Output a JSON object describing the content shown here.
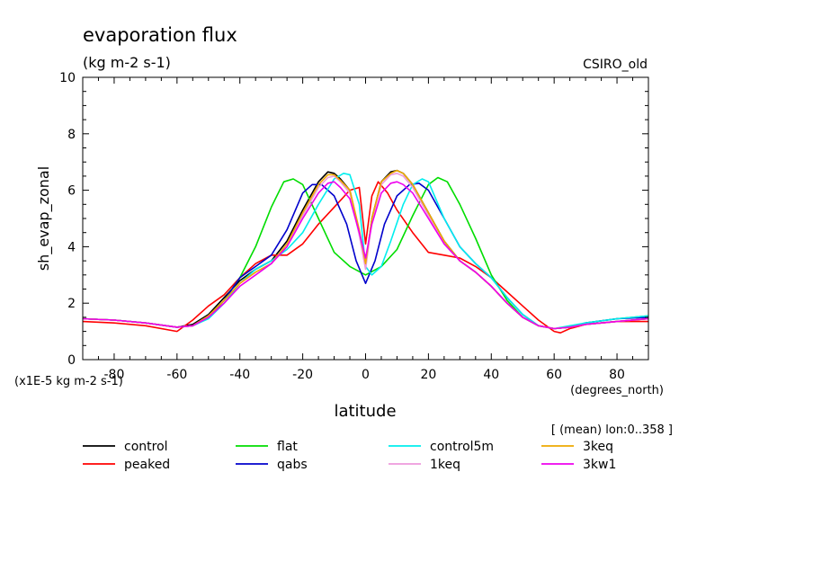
{
  "chart_data": {
    "type": "line",
    "title": "evaporation flux",
    "subtitle": "(kg m-2 s-1)",
    "source_label": "CSIRO_old",
    "ylabel": "sh_evap_zonal",
    "xlabel": "latitude",
    "x_units": "(degrees_north)",
    "y_scale_note": "(x1E-5 kg m-2 s-1)",
    "averaging_note": "[ (mean) lon:0..358 ]",
    "xlim": [
      -90,
      90
    ],
    "ylim": [
      0,
      10
    ],
    "x_ticks": [
      -80,
      -60,
      -40,
      -20,
      0,
      20,
      40,
      60,
      80
    ],
    "y_ticks": [
      0,
      2,
      4,
      6,
      8,
      10
    ],
    "legend_position": "bottom",
    "series": [
      {
        "name": "control",
        "color": "#000000",
        "x": [
          -90,
          -80,
          -70,
          -60,
          -55,
          -50,
          -45,
          -40,
          -35,
          -30,
          -25,
          -20,
          -15,
          -12,
          -10,
          -8,
          -5,
          -2,
          0,
          2,
          5,
          8,
          10,
          12,
          15,
          20,
          25,
          30,
          35,
          40,
          45,
          50,
          55,
          60,
          65,
          70,
          80,
          90
        ],
        "y": [
          1.45,
          1.4,
          1.3,
          1.15,
          1.25,
          1.6,
          2.2,
          2.8,
          3.2,
          3.5,
          4.2,
          5.3,
          6.3,
          6.65,
          6.6,
          6.4,
          6.0,
          4.5,
          3.3,
          5.0,
          6.3,
          6.65,
          6.7,
          6.6,
          6.2,
          5.2,
          4.2,
          3.5,
          3.1,
          2.6,
          2.0,
          1.5,
          1.2,
          1.1,
          1.15,
          1.25,
          1.35,
          1.45
        ]
      },
      {
        "name": "peaked",
        "color": "#ff0000",
        "x": [
          -90,
          -80,
          -70,
          -60,
          -55,
          -50,
          -45,
          -40,
          -35,
          -30,
          -25,
          -20,
          -15,
          -10,
          -5,
          -2,
          0,
          2,
          4,
          7,
          10,
          15,
          20,
          25,
          30,
          35,
          40,
          45,
          50,
          55,
          60,
          62,
          65,
          70,
          80,
          90
        ],
        "y": [
          1.35,
          1.3,
          1.2,
          1.0,
          1.4,
          1.9,
          2.3,
          2.9,
          3.4,
          3.7,
          3.7,
          4.1,
          4.8,
          5.4,
          6.0,
          6.1,
          4.1,
          5.8,
          6.3,
          5.9,
          5.3,
          4.5,
          3.8,
          3.7,
          3.6,
          3.3,
          2.9,
          2.4,
          1.9,
          1.4,
          1.0,
          0.95,
          1.1,
          1.25,
          1.35,
          1.35
        ]
      },
      {
        "name": "flat",
        "color": "#00dd00",
        "x": [
          -90,
          -80,
          -70,
          -60,
          -55,
          -50,
          -45,
          -40,
          -35,
          -30,
          -26,
          -23,
          -20,
          -15,
          -10,
          -5,
          0,
          5,
          10,
          15,
          20,
          23,
          26,
          30,
          35,
          40,
          45,
          50,
          55,
          60,
          65,
          70,
          80,
          90
        ],
        "y": [
          1.45,
          1.4,
          1.3,
          1.15,
          1.2,
          1.5,
          2.1,
          2.9,
          4.0,
          5.4,
          6.3,
          6.4,
          6.2,
          5.0,
          3.8,
          3.3,
          3.0,
          3.3,
          3.9,
          5.1,
          6.2,
          6.45,
          6.3,
          5.5,
          4.3,
          3.0,
          2.1,
          1.5,
          1.2,
          1.1,
          1.15,
          1.3,
          1.45,
          1.55
        ]
      },
      {
        "name": "qabs",
        "color": "#0000cc",
        "x": [
          -90,
          -80,
          -70,
          -60,
          -55,
          -50,
          -45,
          -40,
          -35,
          -30,
          -25,
          -20,
          -17,
          -14,
          -10,
          -6,
          -3,
          0,
          3,
          6,
          10,
          14,
          17,
          20,
          25,
          30,
          35,
          40,
          45,
          50,
          55,
          60,
          65,
          70,
          80,
          90
        ],
        "y": [
          1.45,
          1.4,
          1.3,
          1.15,
          1.2,
          1.5,
          2.1,
          2.9,
          3.3,
          3.7,
          4.6,
          5.9,
          6.2,
          6.2,
          5.8,
          4.8,
          3.5,
          2.7,
          3.5,
          4.8,
          5.8,
          6.2,
          6.25,
          6.0,
          5.0,
          4.0,
          3.4,
          2.9,
          2.2,
          1.6,
          1.2,
          1.1,
          1.15,
          1.3,
          1.45,
          1.5
        ]
      },
      {
        "name": "control5m",
        "color": "#00eeee",
        "x": [
          -90,
          -80,
          -70,
          -60,
          -55,
          -50,
          -45,
          -40,
          -35,
          -30,
          -25,
          -20,
          -15,
          -10,
          -7,
          -5,
          -2,
          0,
          2,
          5,
          8,
          12,
          15,
          18,
          20,
          25,
          30,
          35,
          40,
          45,
          50,
          55,
          60,
          65,
          70,
          80,
          90
        ],
        "y": [
          1.45,
          1.4,
          1.3,
          1.15,
          1.2,
          1.45,
          2.0,
          2.7,
          3.2,
          3.5,
          3.9,
          4.5,
          5.5,
          6.4,
          6.6,
          6.55,
          5.5,
          3.3,
          3.0,
          3.3,
          4.2,
          5.5,
          6.2,
          6.4,
          6.3,
          5.0,
          4.0,
          3.4,
          2.9,
          2.2,
          1.6,
          1.2,
          1.1,
          1.2,
          1.3,
          1.45,
          1.55
        ]
      },
      {
        "name": "1keq",
        "color": "#ee99dd",
        "x": [
          -90,
          -80,
          -70,
          -60,
          -55,
          -50,
          -45,
          -40,
          -35,
          -30,
          -25,
          -20,
          -15,
          -12,
          -10,
          -8,
          -5,
          -2,
          0,
          2,
          5,
          8,
          10,
          12,
          15,
          20,
          25,
          30,
          35,
          40,
          45,
          50,
          55,
          60,
          65,
          70,
          80,
          90
        ],
        "y": [
          1.45,
          1.4,
          1.3,
          1.15,
          1.2,
          1.55,
          2.1,
          2.7,
          3.1,
          3.4,
          4.1,
          5.1,
          6.1,
          6.45,
          6.5,
          6.3,
          5.9,
          4.4,
          3.2,
          4.9,
          6.2,
          6.55,
          6.6,
          6.5,
          6.1,
          5.1,
          4.1,
          3.5,
          3.1,
          2.6,
          2.0,
          1.5,
          1.2,
          1.1,
          1.15,
          1.25,
          1.35,
          1.45
        ]
      },
      {
        "name": "3keq",
        "color": "#eeaa00",
        "x": [
          -90,
          -80,
          -70,
          -60,
          -55,
          -50,
          -45,
          -40,
          -35,
          -30,
          -25,
          -20,
          -15,
          -12,
          -10,
          -8,
          -5,
          -2,
          0,
          2,
          5,
          8,
          10,
          12,
          15,
          20,
          25,
          30,
          35,
          40,
          45,
          50,
          55,
          60,
          65,
          70,
          80,
          90
        ],
        "y": [
          1.45,
          1.4,
          1.3,
          1.15,
          1.2,
          1.55,
          2.1,
          2.7,
          3.1,
          3.4,
          4.1,
          5.2,
          6.2,
          6.55,
          6.55,
          6.35,
          6.0,
          4.6,
          3.4,
          5.0,
          6.3,
          6.6,
          6.7,
          6.6,
          6.2,
          5.2,
          4.2,
          3.5,
          3.1,
          2.6,
          2.0,
          1.5,
          1.2,
          1.1,
          1.15,
          1.25,
          1.35,
          1.45
        ]
      },
      {
        "name": "3kw1",
        "color": "#ee00ee",
        "x": [
          -90,
          -80,
          -70,
          -60,
          -55,
          -50,
          -45,
          -40,
          -35,
          -30,
          -25,
          -20,
          -15,
          -12,
          -10,
          -8,
          -5,
          -2,
          0,
          2,
          5,
          8,
          10,
          12,
          15,
          20,
          25,
          30,
          35,
          40,
          45,
          50,
          55,
          60,
          65,
          70,
          80,
          90
        ],
        "y": [
          1.45,
          1.4,
          1.3,
          1.15,
          1.2,
          1.5,
          2.0,
          2.6,
          3.0,
          3.4,
          4.0,
          5.0,
          5.9,
          6.25,
          6.3,
          6.1,
          5.7,
          4.5,
          3.6,
          4.8,
          5.9,
          6.25,
          6.3,
          6.2,
          5.9,
          5.0,
          4.1,
          3.5,
          3.1,
          2.6,
          2.0,
          1.5,
          1.2,
          1.1,
          1.15,
          1.25,
          1.35,
          1.45
        ]
      }
    ]
  }
}
